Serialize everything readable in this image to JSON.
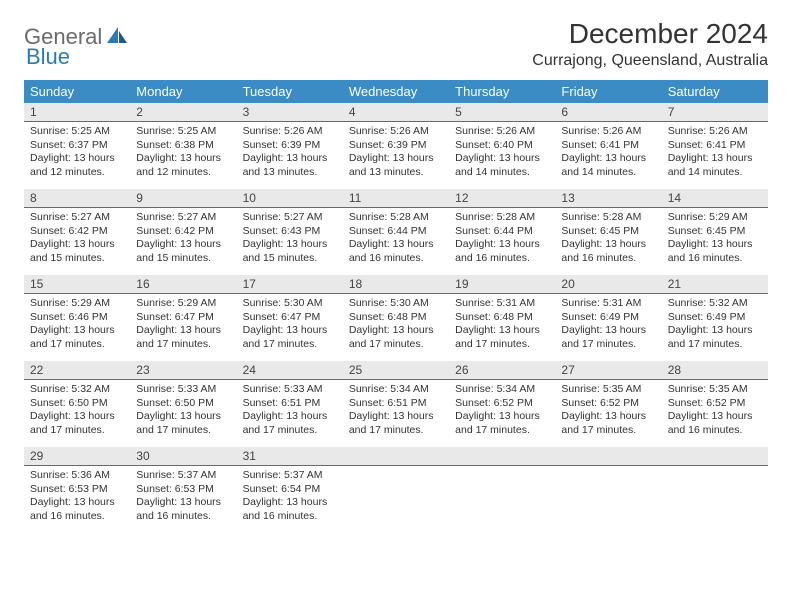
{
  "logo": {
    "part1": "General",
    "part2": "Blue"
  },
  "title": "December 2024",
  "location": "Currajong, Queensland, Australia",
  "colors": {
    "header_bg": "#3b8bc4",
    "header_text": "#ffffff",
    "daynum_bg": "#e9e9e9",
    "daynum_border": "#2a7ab8",
    "text": "#333333",
    "logo_gray": "#6b6b6b",
    "logo_blue": "#2a7ab8"
  },
  "day_names": [
    "Sunday",
    "Monday",
    "Tuesday",
    "Wednesday",
    "Thursday",
    "Friday",
    "Saturday"
  ],
  "weeks": [
    [
      {
        "n": "1",
        "sr": "5:25 AM",
        "ss": "6:37 PM",
        "dh": "13",
        "dm": "12"
      },
      {
        "n": "2",
        "sr": "5:25 AM",
        "ss": "6:38 PM",
        "dh": "13",
        "dm": "12"
      },
      {
        "n": "3",
        "sr": "5:26 AM",
        "ss": "6:39 PM",
        "dh": "13",
        "dm": "13"
      },
      {
        "n": "4",
        "sr": "5:26 AM",
        "ss": "6:39 PM",
        "dh": "13",
        "dm": "13"
      },
      {
        "n": "5",
        "sr": "5:26 AM",
        "ss": "6:40 PM",
        "dh": "13",
        "dm": "14"
      },
      {
        "n": "6",
        "sr": "5:26 AM",
        "ss": "6:41 PM",
        "dh": "13",
        "dm": "14"
      },
      {
        "n": "7",
        "sr": "5:26 AM",
        "ss": "6:41 PM",
        "dh": "13",
        "dm": "14"
      }
    ],
    [
      {
        "n": "8",
        "sr": "5:27 AM",
        "ss": "6:42 PM",
        "dh": "13",
        "dm": "15"
      },
      {
        "n": "9",
        "sr": "5:27 AM",
        "ss": "6:42 PM",
        "dh": "13",
        "dm": "15"
      },
      {
        "n": "10",
        "sr": "5:27 AM",
        "ss": "6:43 PM",
        "dh": "13",
        "dm": "15"
      },
      {
        "n": "11",
        "sr": "5:28 AM",
        "ss": "6:44 PM",
        "dh": "13",
        "dm": "16"
      },
      {
        "n": "12",
        "sr": "5:28 AM",
        "ss": "6:44 PM",
        "dh": "13",
        "dm": "16"
      },
      {
        "n": "13",
        "sr": "5:28 AM",
        "ss": "6:45 PM",
        "dh": "13",
        "dm": "16"
      },
      {
        "n": "14",
        "sr": "5:29 AM",
        "ss": "6:45 PM",
        "dh": "13",
        "dm": "16"
      }
    ],
    [
      {
        "n": "15",
        "sr": "5:29 AM",
        "ss": "6:46 PM",
        "dh": "13",
        "dm": "17"
      },
      {
        "n": "16",
        "sr": "5:29 AM",
        "ss": "6:47 PM",
        "dh": "13",
        "dm": "17"
      },
      {
        "n": "17",
        "sr": "5:30 AM",
        "ss": "6:47 PM",
        "dh": "13",
        "dm": "17"
      },
      {
        "n": "18",
        "sr": "5:30 AM",
        "ss": "6:48 PM",
        "dh": "13",
        "dm": "17"
      },
      {
        "n": "19",
        "sr": "5:31 AM",
        "ss": "6:48 PM",
        "dh": "13",
        "dm": "17"
      },
      {
        "n": "20",
        "sr": "5:31 AM",
        "ss": "6:49 PM",
        "dh": "13",
        "dm": "17"
      },
      {
        "n": "21",
        "sr": "5:32 AM",
        "ss": "6:49 PM",
        "dh": "13",
        "dm": "17"
      }
    ],
    [
      {
        "n": "22",
        "sr": "5:32 AM",
        "ss": "6:50 PM",
        "dh": "13",
        "dm": "17"
      },
      {
        "n": "23",
        "sr": "5:33 AM",
        "ss": "6:50 PM",
        "dh": "13",
        "dm": "17"
      },
      {
        "n": "24",
        "sr": "5:33 AM",
        "ss": "6:51 PM",
        "dh": "13",
        "dm": "17"
      },
      {
        "n": "25",
        "sr": "5:34 AM",
        "ss": "6:51 PM",
        "dh": "13",
        "dm": "17"
      },
      {
        "n": "26",
        "sr": "5:34 AM",
        "ss": "6:52 PM",
        "dh": "13",
        "dm": "17"
      },
      {
        "n": "27",
        "sr": "5:35 AM",
        "ss": "6:52 PM",
        "dh": "13",
        "dm": "17"
      },
      {
        "n": "28",
        "sr": "5:35 AM",
        "ss": "6:52 PM",
        "dh": "13",
        "dm": "16"
      }
    ],
    [
      {
        "n": "29",
        "sr": "5:36 AM",
        "ss": "6:53 PM",
        "dh": "13",
        "dm": "16"
      },
      {
        "n": "30",
        "sr": "5:37 AM",
        "ss": "6:53 PM",
        "dh": "13",
        "dm": "16"
      },
      {
        "n": "31",
        "sr": "5:37 AM",
        "ss": "6:54 PM",
        "dh": "13",
        "dm": "16"
      },
      {
        "empty": true
      },
      {
        "empty": true
      },
      {
        "empty": true
      },
      {
        "empty": true
      }
    ]
  ],
  "labels": {
    "sunrise": "Sunrise:",
    "sunset": "Sunset:",
    "daylight": "Daylight:",
    "hours": "hours",
    "and": "and",
    "minutes": "minutes."
  }
}
